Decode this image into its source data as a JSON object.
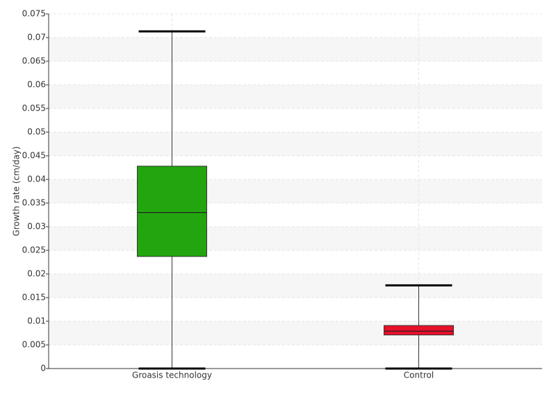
{
  "chart_data": {
    "type": "box",
    "y_label": "Growth rate (cm/day)",
    "categories": [
      "Groasis technology",
      "Control"
    ],
    "boxes": [
      {
        "low": 0,
        "q1": 0.0237,
        "median": 0.033,
        "q3": 0.0428,
        "high": 0.0713,
        "color": "#22a50e"
      },
      {
        "low": 0,
        "q1": 0.0071,
        "median": 0.0079,
        "q3": 0.0091,
        "high": 0.0176,
        "color": "#e8102a"
      }
    ],
    "ylim": [
      0,
      0.075
    ],
    "yticks": [
      0,
      0.005,
      0.01,
      0.015,
      0.02,
      0.025,
      0.03,
      0.035,
      0.04,
      0.045,
      0.05,
      0.055,
      0.06,
      0.065,
      0.07,
      0.075
    ],
    "grid": true
  }
}
